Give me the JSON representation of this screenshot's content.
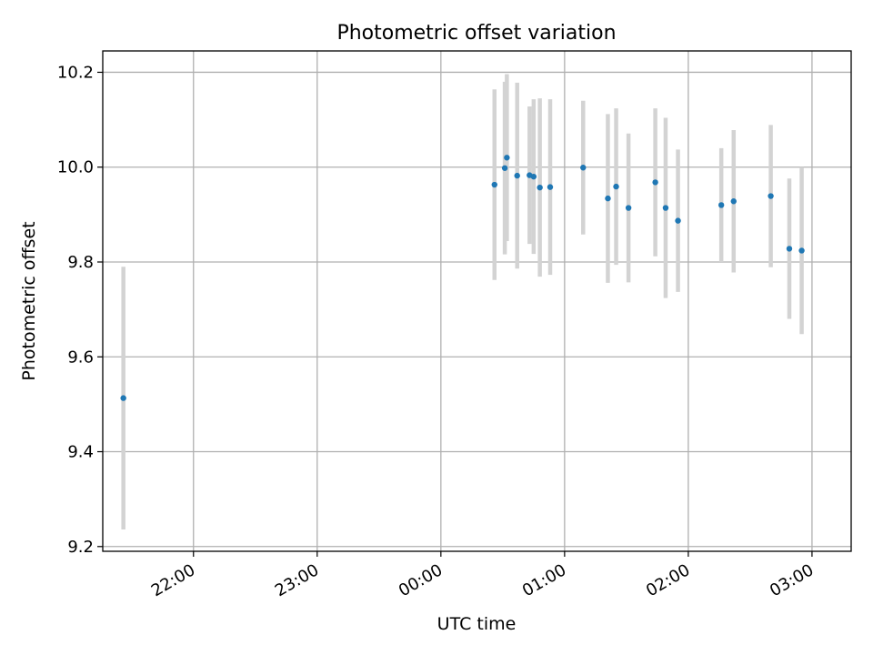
{
  "chart_data": {
    "type": "scatter",
    "title": "Photometric offset variation",
    "xlabel": "UTC time",
    "ylabel": "Photometric offset",
    "x_is_time": true,
    "x_tick_labels": [
      "22:00",
      "23:00",
      "00:00",
      "01:00",
      "02:00",
      "03:00"
    ],
    "x_ticks": [
      "22:00",
      "23:00",
      "00:00",
      "01:00",
      "02:00",
      "03:00"
    ],
    "y_ticks": [
      9.2,
      9.4,
      9.6,
      9.8,
      10.0,
      10.2
    ],
    "y_tick_labels": [
      "9.2",
      "9.4",
      "9.6",
      "9.8",
      "10.0",
      "10.2"
    ],
    "xlim": [
      "21:16",
      "03:19"
    ],
    "ylim": [
      9.19,
      10.245
    ],
    "grid": true,
    "series": [
      {
        "marker_color": "#1f77b4",
        "errorbar_color": "#d3d3d3",
        "points": [
          {
            "x": "21:26",
            "y": 9.513,
            "err": 0.277
          },
          {
            "x": "00:26",
            "y": 9.963,
            "err": 0.201
          },
          {
            "x": "00:31",
            "y": 9.998,
            "err": 0.182
          },
          {
            "x": "00:32",
            "y": 10.02,
            "err": 0.176
          },
          {
            "x": "00:37",
            "y": 9.982,
            "err": 0.196
          },
          {
            "x": "00:43",
            "y": 9.983,
            "err": 0.145
          },
          {
            "x": "00:45",
            "y": 9.98,
            "err": 0.163
          },
          {
            "x": "00:48",
            "y": 9.957,
            "err": 0.188
          },
          {
            "x": "00:53",
            "y": 9.958,
            "err": 0.185
          },
          {
            "x": "01:09",
            "y": 9.999,
            "err": 0.141
          },
          {
            "x": "01:21",
            "y": 9.934,
            "err": 0.178
          },
          {
            "x": "01:25",
            "y": 9.959,
            "err": 0.165
          },
          {
            "x": "01:31",
            "y": 9.914,
            "err": 0.157
          },
          {
            "x": "01:44",
            "y": 9.968,
            "err": 0.156
          },
          {
            "x": "01:49",
            "y": 9.914,
            "err": 0.19
          },
          {
            "x": "01:55",
            "y": 9.887,
            "err": 0.15
          },
          {
            "x": "02:16",
            "y": 9.92,
            "err": 0.12
          },
          {
            "x": "02:22",
            "y": 9.928,
            "err": 0.15
          },
          {
            "x": "02:40",
            "y": 9.939,
            "err": 0.15
          },
          {
            "x": "02:49",
            "y": 9.828,
            "err": 0.148
          },
          {
            "x": "02:55",
            "y": 9.824,
            "err": 0.176
          }
        ]
      }
    ]
  }
}
